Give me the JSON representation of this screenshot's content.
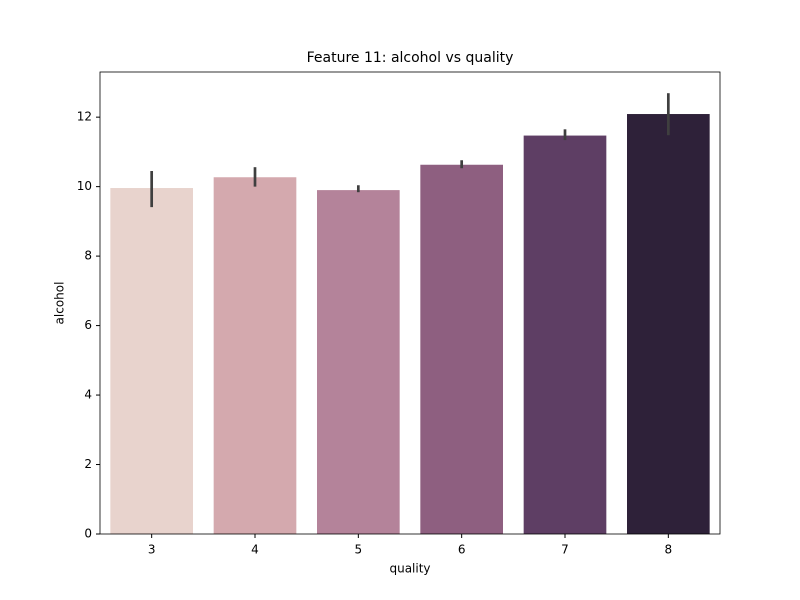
{
  "chart_data": {
    "type": "bar",
    "title": "Feature 11: alcohol vs quality",
    "x_label": "quality",
    "y_label": "alcohol",
    "categories": [
      "3",
      "4",
      "5",
      "6",
      "7",
      "8"
    ],
    "values": [
      9.96,
      10.27,
      9.9,
      10.63,
      11.47,
      12.09
    ],
    "ci_low": [
      9.41,
      10.0,
      9.84,
      10.53,
      11.34,
      11.48
    ],
    "ci_high": [
      10.45,
      10.56,
      10.04,
      10.76,
      11.65,
      12.69
    ],
    "colors": [
      "#e8d3cd",
      "#d4a9ae",
      "#b4839a",
      "#8e5f80",
      "#5e3e64",
      "#2e2139"
    ],
    "error_color": "#3f3f3f",
    "ylim": [
      0,
      13.3
    ],
    "yticks": [
      0,
      2,
      4,
      6,
      8,
      10,
      12
    ],
    "grid": false
  }
}
